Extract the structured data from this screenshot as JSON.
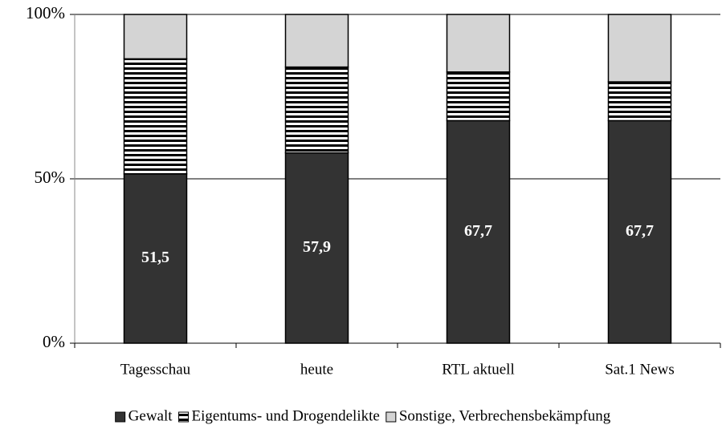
{
  "chart_data": {
    "type": "stacked_bar",
    "categories": [
      "Tagesschau",
      "heute",
      "RTL aktuell",
      "Sat.1 News"
    ],
    "series": [
      {
        "name": "Gewalt",
        "color": "#333333",
        "values": [
          51.5,
          57.9,
          67.7,
          67.7
        ],
        "value_labels": [
          "51,5",
          "57,9",
          "67,7",
          "67,7"
        ]
      },
      {
        "name": "Eigentums- und Drogendelikte",
        "color": "#000000",
        "pattern": "horizontal-stripes",
        "values": [
          35,
          26.1,
          14.8,
          11.8
        ]
      },
      {
        "name": "Sonstige, Verbrechensbekämpfung",
        "color": "#d4d4d4",
        "values": [
          13.5,
          16,
          17.5,
          20.5
        ]
      }
    ],
    "ylim": [
      0,
      100
    ],
    "yticks": [
      {
        "value": 0,
        "label": "0%"
      },
      {
        "value": 50,
        "label": "50%"
      },
      {
        "value": 100,
        "label": "100%"
      }
    ],
    "grid": true,
    "legend": "bottom"
  }
}
